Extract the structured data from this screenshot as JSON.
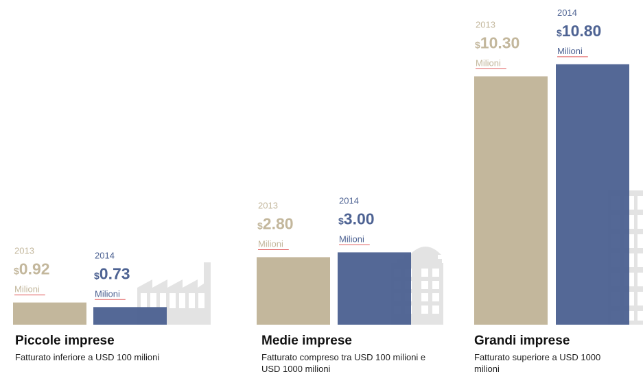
{
  "colors": {
    "y2013": "#c3b79c",
    "y2014": "#4e6393",
    "building": "#e3e3e3",
    "underline": "#e05a5a"
  },
  "chart_data": {
    "type": "bar",
    "currency_symbol": "$",
    "unit_label": "Milioni",
    "series": [
      {
        "name": "2013",
        "values": [
          0.92,
          2.8,
          10.3
        ]
      },
      {
        "name": "2014",
        "values": [
          0.73,
          3.0,
          10.8
        ]
      }
    ],
    "categories": [
      {
        "title": "Piccole imprese",
        "desc": [
          "Fatturato inferiore a USD 100 milioni"
        ],
        "labels": [
          "0.92",
          "0.73"
        ],
        "icon": "factory-icon"
      },
      {
        "title": "Medie imprese",
        "desc": [
          "Fatturato compreso tra USD 100 milioni e",
          "USD 1000 milioni"
        ],
        "labels": [
          "2.80",
          "3.00"
        ],
        "icon": "office-building-icon"
      },
      {
        "title": "Grandi imprese",
        "desc": [
          "Fatturato superiore a USD 1000",
          "milioni"
        ],
        "labels": [
          "10.30",
          "10.80"
        ],
        "icon": "skyscraper-icon"
      }
    ]
  }
}
